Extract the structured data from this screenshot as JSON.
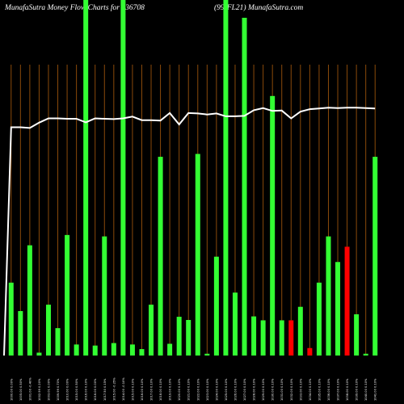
{
  "header": {
    "title_left": "MunafaSutra  Money Flow  Charts for 936708",
    "title_right": "(99-FL21) MunafaSutra.com"
  },
  "colors": {
    "background": "#000000",
    "gridline": "#8a4a0a",
    "up_bar": "#33ff33",
    "down_bar": "#ff0000",
    "line": "#ffffff",
    "text": "#ffffff"
  },
  "chart_data": {
    "type": "bar",
    "ylim": [
      0,
      100
    ],
    "grid": true,
    "categories": [
      "1000.00 0.00%",
      "1005.00 0.50%",
      "1001.00 -0.40%",
      "1002.99 0.20%",
      "1003.01 0.00%",
      "1009.99 0.70%",
      "1010.00 0.00%",
      "1015.00 0.50%",
      "1016.00 0.10%",
      "1016.00 0.00%",
      "1017.50 0.15%",
      "1015.00 -0.25%",
      "1014.00 -0.10%",
      "1015.00 0.10%",
      "1016.00 0.10%",
      "1017.00 0.10%",
      "1018.00 0.10%",
      "1019.00 0.10%",
      "1020.00 0.10%",
      "1021.00 0.10%",
      "1022.00 0.10%",
      "1023.00 0.10%",
      "1024.00 0.10%",
      "1025.00 0.10%",
      "1026.00 0.10%",
      "1027.00 0.10%",
      "1028.00 0.10%",
      "1029.00 0.10%",
      "1030.00 0.10%",
      "1031.00 0.10%",
      "1032.00 0.10%",
      "1033.00 0.10%",
      "1034.00 0.10%",
      "1035.00 0.10%",
      "1036.00 0.10%",
      "1037.00 0.10%",
      "1038.00 0.10%",
      "1039.00 0.10%",
      "1040.00 0.10%",
      "1041.00 0.10%"
    ],
    "values": [
      20.5,
      12.5,
      31,
      0.8,
      14.3,
      7.7,
      33.9,
      3.1,
      100,
      2.8,
      33.5,
      3.5,
      102,
      3.1,
      1.8,
      14.3,
      55.9,
      3.3,
      10.9,
      10,
      56.7,
      0.5,
      27.8,
      100,
      17.7,
      95,
      11,
      9.9,
      73,
      9.9,
      9.9,
      13.7,
      2.1,
      20.5,
      33.5,
      26.3,
      30.6,
      11.6,
      0.5,
      55.9
    ],
    "colors": [
      "up",
      "up",
      "up",
      "up",
      "up",
      "up",
      "up",
      "up",
      "up",
      "up",
      "up",
      "up",
      "up",
      "up",
      "up",
      "up",
      "up",
      "up",
      "up",
      "up",
      "up",
      "up",
      "up",
      "up",
      "up",
      "up",
      "up",
      "up",
      "up",
      "up",
      "down",
      "up",
      "down",
      "up",
      "up",
      "up",
      "down",
      "up",
      "up",
      "up"
    ],
    "line": [
      64.2,
      64.2,
      64.0,
      65.5,
      66.7,
      66.7,
      66.6,
      66.6,
      65.6,
      66.7,
      66.6,
      66.5,
      66.7,
      67.2,
      66.2,
      66.2,
      66.1,
      68.2,
      65.0,
      68.2,
      68.1,
      67.8,
      68.1,
      67.3,
      67.3,
      67.4,
      69.0,
      69.6,
      68.8,
      68.9,
      66.7,
      68.6,
      69.3,
      69.5,
      69.7,
      69.6,
      69.7,
      69.7,
      69.6,
      69.5
    ]
  }
}
